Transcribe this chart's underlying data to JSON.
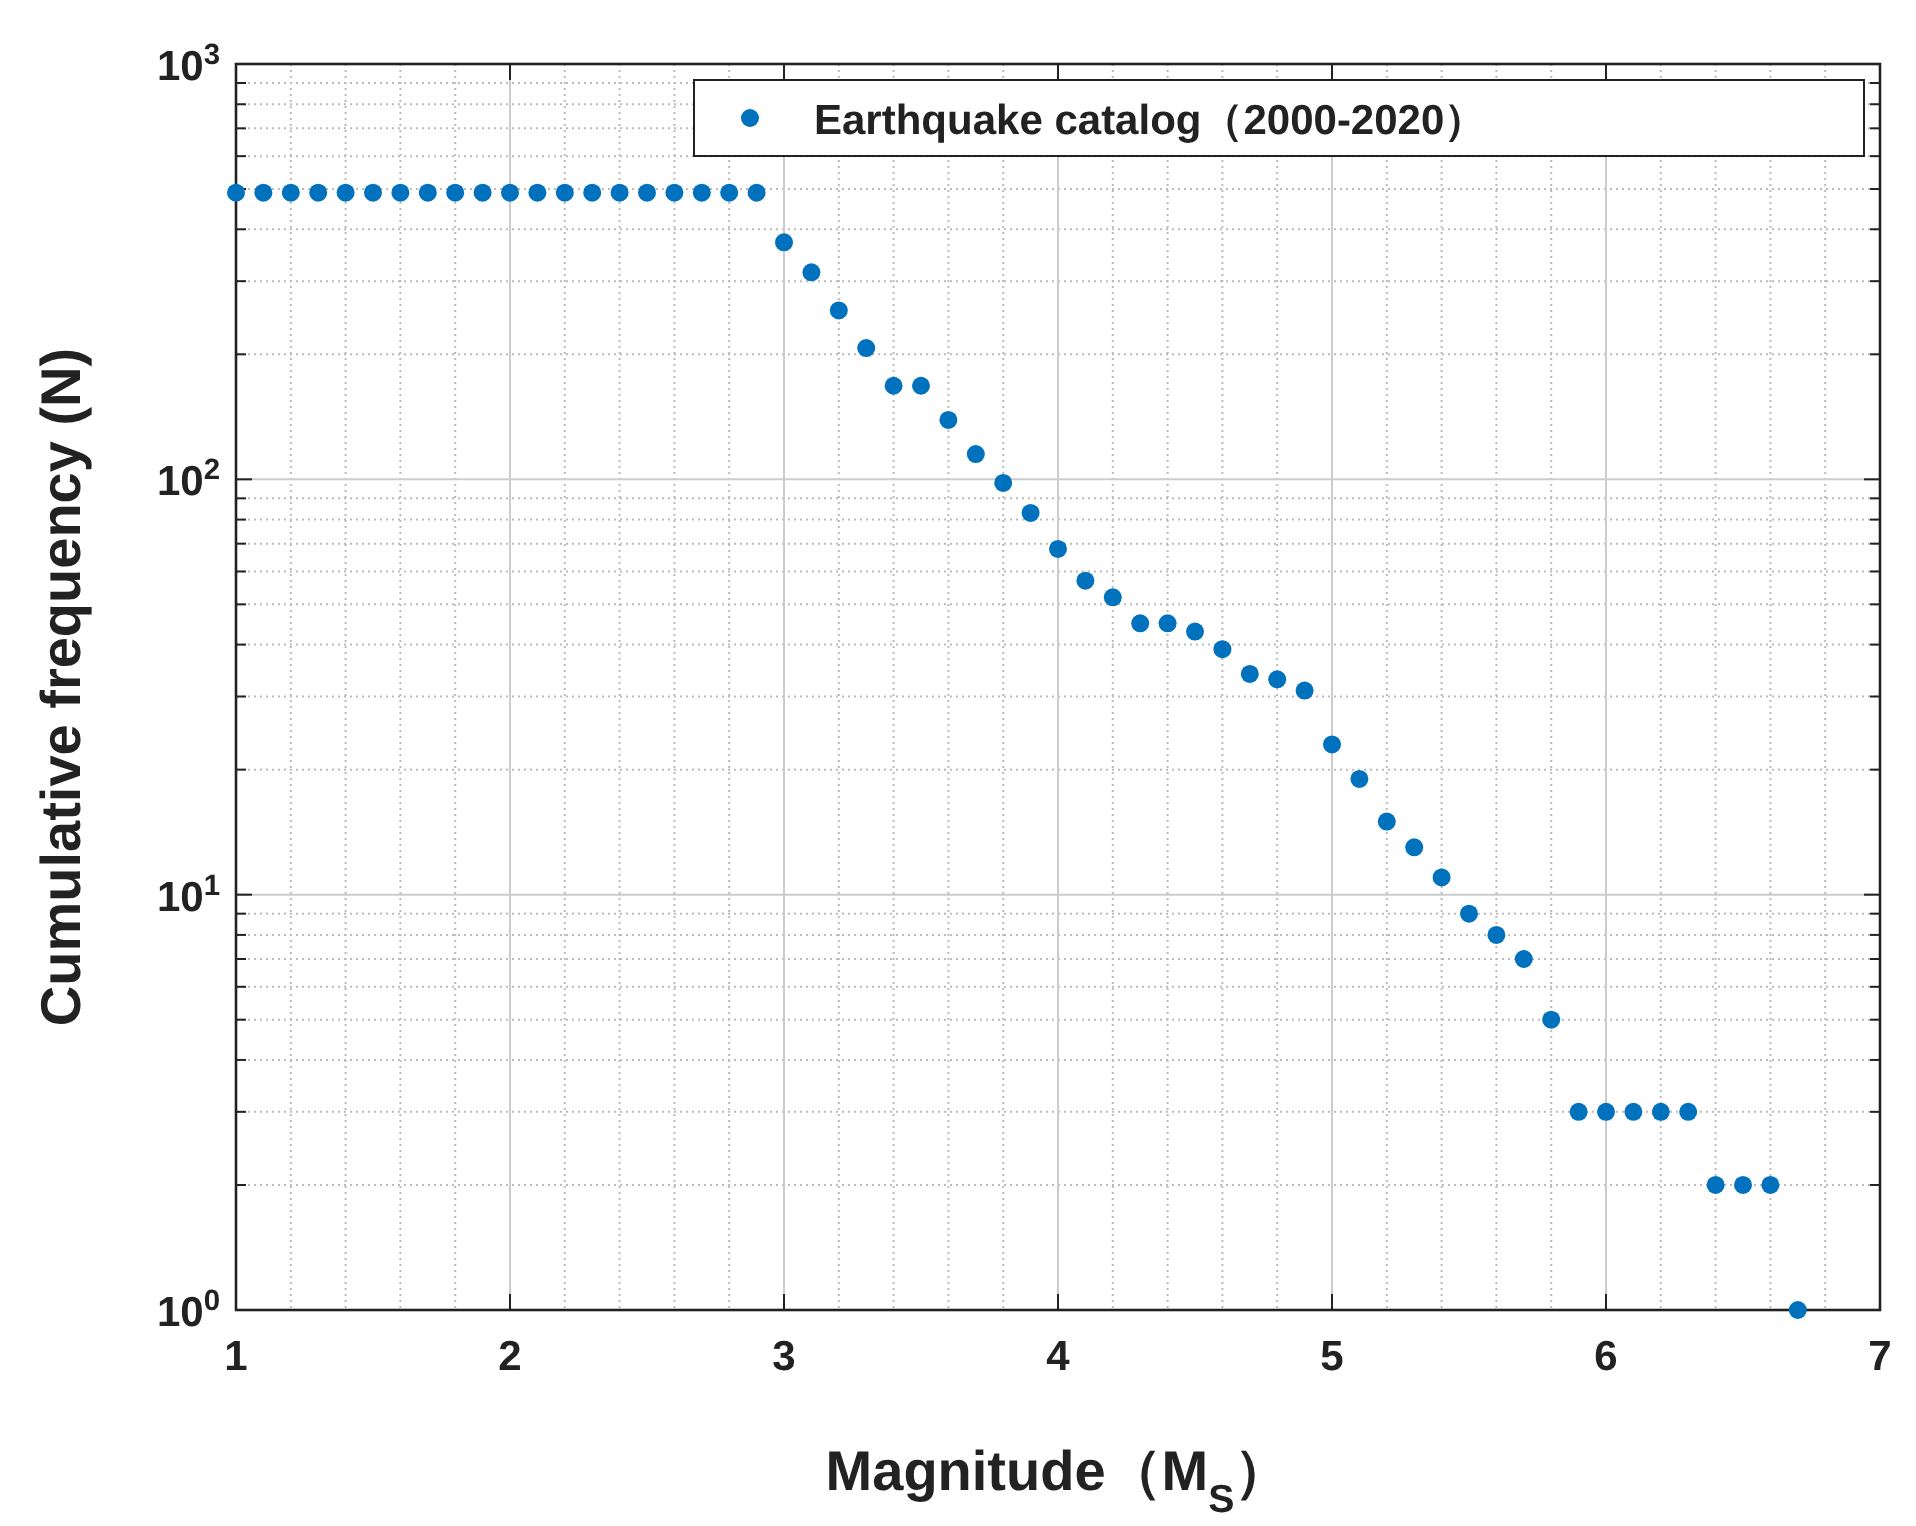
{
  "chart_data": {
    "type": "scatter",
    "xlabel": "Magnitude（M$_{S}$）",
    "ylabel": "Cumulative frequency (N)",
    "x": [
      1.0,
      1.1,
      1.2,
      1.3,
      1.4,
      1.5,
      1.6,
      1.7,
      1.8,
      1.9,
      2.0,
      2.1,
      2.2,
      2.3,
      2.4,
      2.5,
      2.6,
      2.7,
      2.8,
      2.9,
      3.0,
      3.1,
      3.2,
      3.3,
      3.4,
      3.5,
      3.6,
      3.7,
      3.8,
      3.9,
      4.0,
      4.1,
      4.2,
      4.3,
      4.4,
      4.5,
      4.6,
      4.7,
      4.8,
      4.9,
      5.0,
      5.1,
      5.2,
      5.3,
      5.4,
      5.5,
      5.6,
      5.7,
      5.8,
      5.9,
      6.0,
      6.1,
      6.2,
      6.3,
      6.4,
      6.5,
      6.6,
      6.7
    ],
    "series": [
      {
        "name": "Earthquake catalog（2000-2020）",
        "color": "#0072bd",
        "values": [
          490,
          490,
          490,
          490,
          490,
          490,
          490,
          490,
          490,
          490,
          490,
          490,
          490,
          490,
          490,
          490,
          490,
          490,
          490,
          490,
          372,
          315,
          255,
          207,
          168,
          168,
          139,
          115,
          98,
          83,
          68,
          57,
          52,
          45,
          45,
          43,
          39,
          34,
          33,
          31,
          23,
          19,
          15,
          13,
          11,
          9,
          8,
          7,
          5,
          3,
          3,
          3,
          3,
          3,
          2,
          2,
          2,
          1
        ]
      }
    ],
    "log": "y",
    "xlim": [
      1,
      7
    ],
    "ylim": [
      1,
      1000
    ],
    "xticks": [
      1,
      2,
      3,
      4,
      5,
      6,
      7
    ],
    "yticks": [
      {
        "value": 1,
        "label": "10$^{0}$"
      },
      {
        "value": 10,
        "label": "10$^{1}$"
      },
      {
        "value": 100,
        "label": "10$^{2}$"
      },
      {
        "value": 1000,
        "label": "10$^{3}$"
      }
    ],
    "grid": true,
    "legend": "top right",
    "marker": "circle"
  }
}
